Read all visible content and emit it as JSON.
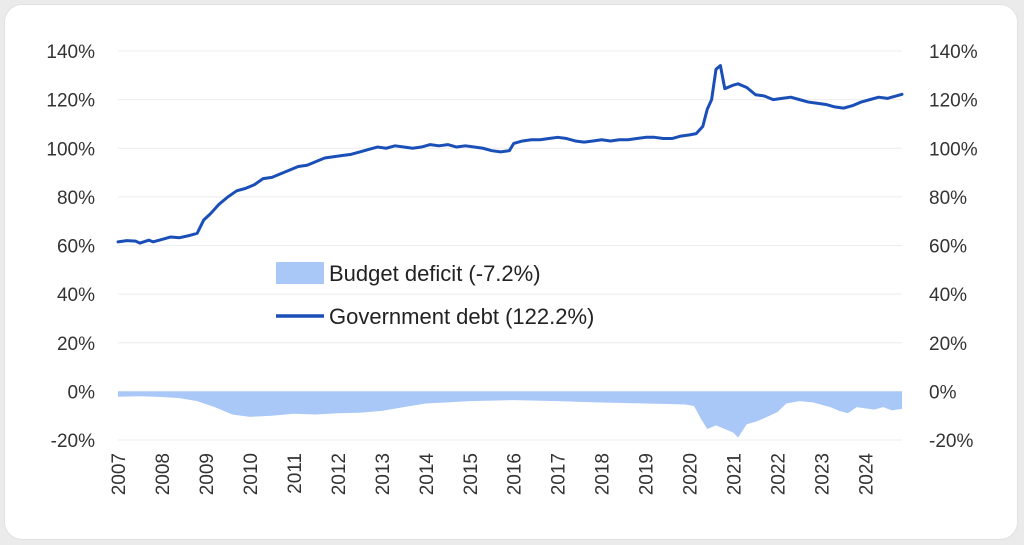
{
  "chart_data": {
    "type": "line",
    "title": "",
    "xlabel": "",
    "ylabel": "",
    "x_range": [
      2007.0,
      2024.83
    ],
    "y_range": [
      -20,
      140
    ],
    "y_ticks": [
      "-20%",
      "0%",
      "20%",
      "40%",
      "60%",
      "80%",
      "100%",
      "120%",
      "140%"
    ],
    "y_tick_values": [
      -20,
      0,
      20,
      40,
      60,
      80,
      100,
      120,
      140
    ],
    "x_ticks": [
      "2007",
      "2008",
      "2009",
      "2010",
      "2011",
      "2012",
      "2013",
      "2014",
      "2015",
      "2016",
      "2017",
      "2018",
      "2019",
      "2020",
      "2021",
      "2022",
      "2023",
      "2024"
    ],
    "x_tick_values": [
      2007,
      2008,
      2009,
      2010,
      2011,
      2012,
      2013,
      2014,
      2015,
      2016,
      2017,
      2018,
      2019,
      2020,
      2021,
      2022,
      2023,
      2024
    ],
    "grid": "horizontal",
    "legend_position": "center",
    "series": [
      {
        "name": "Budget deficit (-7.2%)",
        "kind": "area",
        "color": "#a9c8f7",
        "x": [
          2007.0,
          2007.5,
          2008.0,
          2008.4,
          2008.8,
          2009.2,
          2009.6,
          2010.0,
          2010.5,
          2011.0,
          2011.5,
          2012.0,
          2012.5,
          2013.0,
          2013.5,
          2014.0,
          2014.5,
          2015.0,
          2015.5,
          2016.0,
          2016.5,
          2017.0,
          2017.5,
          2018.0,
          2018.5,
          2019.0,
          2019.5,
          2019.9,
          2020.1,
          2020.25,
          2020.4,
          2020.6,
          2020.8,
          2021.0,
          2021.1,
          2021.3,
          2021.5,
          2021.7,
          2022.0,
          2022.2,
          2022.5,
          2022.8,
          2023.0,
          2023.2,
          2023.4,
          2023.6,
          2023.8,
          2024.0,
          2024.2,
          2024.4,
          2024.6,
          2024.83
        ],
        "values": [
          -2.2,
          -2.0,
          -2.3,
          -2.8,
          -4.0,
          -6.5,
          -9.5,
          -10.5,
          -10.0,
          -9.2,
          -9.5,
          -9.0,
          -8.8,
          -8.0,
          -6.5,
          -5.0,
          -4.5,
          -4.0,
          -3.8,
          -3.6,
          -3.8,
          -4.0,
          -4.3,
          -4.6,
          -4.8,
          -5.0,
          -5.2,
          -5.4,
          -6.0,
          -11.0,
          -15.5,
          -14.0,
          -15.5,
          -17.0,
          -19.0,
          -13.5,
          -12.5,
          -11.0,
          -8.5,
          -5.0,
          -4.0,
          -4.5,
          -5.5,
          -6.5,
          -8.0,
          -9.0,
          -6.5,
          -7.0,
          -7.5,
          -6.5,
          -7.8,
          -7.2
        ]
      },
      {
        "name": "Government debt (122.2%)",
        "kind": "line",
        "color": "#1a4fb8",
        "x": [
          2007.0,
          2007.2,
          2007.4,
          2007.5,
          2007.7,
          2007.8,
          2008.0,
          2008.2,
          2008.4,
          2008.6,
          2008.8,
          2008.95,
          2009.1,
          2009.3,
          2009.5,
          2009.7,
          2009.9,
          2010.1,
          2010.3,
          2010.5,
          2010.7,
          2010.9,
          2011.1,
          2011.3,
          2011.5,
          2011.7,
          2011.9,
          2012.1,
          2012.3,
          2012.5,
          2012.7,
          2012.9,
          2013.1,
          2013.3,
          2013.5,
          2013.7,
          2013.9,
          2014.1,
          2014.3,
          2014.5,
          2014.7,
          2014.9,
          2015.1,
          2015.3,
          2015.5,
          2015.7,
          2015.9,
          2016.0,
          2016.2,
          2016.4,
          2016.6,
          2016.8,
          2017.0,
          2017.2,
          2017.4,
          2017.6,
          2017.8,
          2018.0,
          2018.2,
          2018.4,
          2018.6,
          2018.8,
          2019.0,
          2019.2,
          2019.4,
          2019.6,
          2019.8,
          2020.0,
          2020.15,
          2020.3,
          2020.4,
          2020.5,
          2020.6,
          2020.7,
          2020.8,
          2021.0,
          2021.1,
          2021.3,
          2021.5,
          2021.7,
          2021.9,
          2022.1,
          2022.3,
          2022.5,
          2022.7,
          2022.9,
          2023.1,
          2023.3,
          2023.5,
          2023.7,
          2023.9,
          2024.1,
          2024.3,
          2024.5,
          2024.7,
          2024.83
        ],
        "values": [
          61.5,
          62.0,
          61.8,
          61.0,
          62.2,
          61.5,
          62.5,
          63.5,
          63.2,
          64.0,
          65.0,
          70.5,
          73.0,
          77.0,
          80.0,
          82.5,
          83.5,
          85.0,
          87.5,
          88.0,
          89.5,
          91.0,
          92.5,
          93.0,
          94.5,
          96.0,
          96.5,
          97.0,
          97.5,
          98.5,
          99.5,
          100.5,
          100.0,
          101.0,
          100.5,
          100.0,
          100.5,
          101.5,
          101.0,
          101.5,
          100.5,
          101.0,
          100.5,
          100.0,
          99.0,
          98.5,
          99.0,
          102.0,
          103.0,
          103.5,
          103.5,
          104.0,
          104.5,
          104.0,
          103.0,
          102.5,
          103.0,
          103.5,
          103.0,
          103.5,
          103.5,
          104.0,
          104.5,
          104.5,
          104.0,
          104.0,
          105.0,
          105.5,
          106.0,
          109.0,
          116.0,
          120.0,
          132.5,
          134.0,
          124.5,
          126.0,
          126.5,
          125.0,
          122.0,
          121.5,
          120.0,
          120.5,
          121.0,
          120.0,
          119.0,
          118.5,
          118.0,
          117.0,
          116.5,
          117.5,
          119.0,
          120.0,
          121.0,
          120.5,
          121.5,
          122.2
        ]
      }
    ]
  }
}
